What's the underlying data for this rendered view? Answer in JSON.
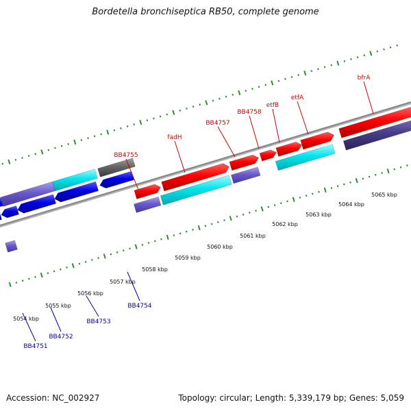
{
  "title": "Bordetella bronchiseptica RB50, complete genome",
  "footer": {
    "accession": "Accession: NC_002927",
    "summary": "Topology: circular; Length: 5,339,179 bp; Genes: 5,059"
  },
  "colors": {
    "forward_label": "#cc0000",
    "reverse_label": "#0000aa",
    "backbone": "#8a8a8a",
    "tick": "#2e8b2e",
    "red_feature": "#ff0000",
    "cyan_feature": "#00e5ee",
    "blue_feature": "#0000e6",
    "slate_feature": "#6a5acd",
    "dark_slate_feature": "#483d8b",
    "gray_feature": "#666666"
  },
  "scale_labels": [
    "5054 kbp",
    "5055 kbp",
    "5056 kbp",
    "5057 kbp",
    "5058 kbp",
    "5059 kbp",
    "5060 kbp",
    "5061 kbp",
    "5062 kbp",
    "5063 kbp",
    "5064 kbp",
    "5065 kbp"
  ],
  "forward_genes": [
    "BB4755",
    "fadH",
    "BB4757",
    "BB4758",
    "etfB",
    "etfA",
    "bfrA"
  ],
  "reverse_genes": [
    "BB4751",
    "BB4752",
    "BB4753",
    "BB4754"
  ]
}
